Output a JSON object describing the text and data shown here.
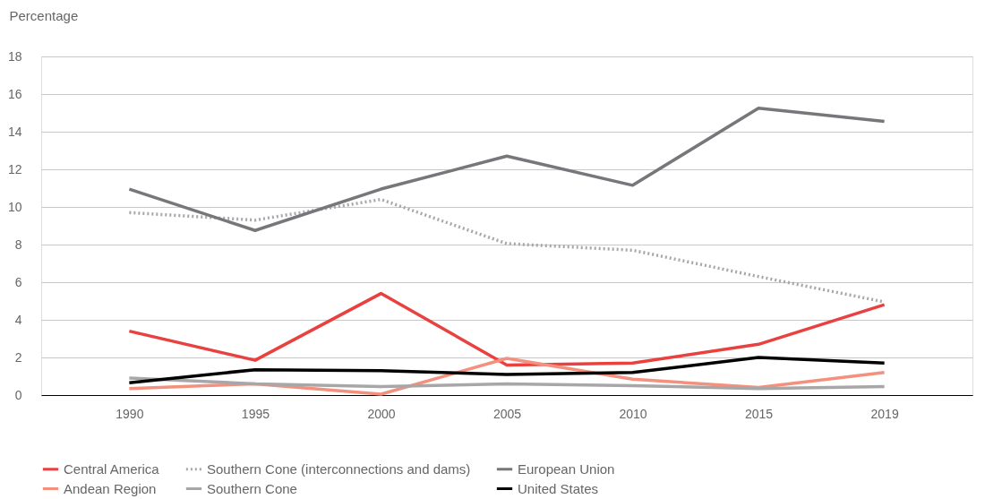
{
  "chart_data": {
    "type": "line",
    "ylabel": "Percentage",
    "categories": [
      "1990",
      "1995",
      "2000",
      "2005",
      "2010",
      "2015",
      "2019"
    ],
    "ylim": [
      0,
      18
    ],
    "yticks": [
      0,
      2,
      4,
      6,
      8,
      10,
      12,
      14,
      16,
      18
    ],
    "grid": "y",
    "legend": "bottom",
    "marker": "none",
    "series": [
      {
        "name": "Central America",
        "color": "#e8413f",
        "line_style": "solid",
        "values": [
          3.4,
          1.85,
          5.4,
          1.6,
          1.7,
          2.7,
          4.8
        ]
      },
      {
        "name": "Andean Region",
        "color": "#f4907e",
        "line_style": "solid",
        "values": [
          0.35,
          0.6,
          0.05,
          1.95,
          0.85,
          0.4,
          1.2
        ]
      },
      {
        "name": "Southern Cone (interconnections and dams)",
        "color": "#a7a7a9",
        "line_style": "dotted",
        "values": [
          9.7,
          9.3,
          10.4,
          8.05,
          7.7,
          6.3,
          4.95
        ]
      },
      {
        "name": "Southern Cone",
        "color": "#a7a7a9",
        "line_style": "solid",
        "values": [
          0.9,
          0.6,
          0.45,
          0.6,
          0.5,
          0.35,
          0.45
        ]
      },
      {
        "name": "European Union",
        "color": "#77777b",
        "line_style": "solid",
        "values": [
          10.95,
          8.75,
          10.95,
          12.7,
          11.15,
          15.25,
          14.55
        ]
      },
      {
        "name": "United States",
        "color": "#000000",
        "line_style": "solid",
        "values": [
          0.65,
          1.35,
          1.3,
          1.1,
          1.2,
          2.0,
          1.7
        ]
      }
    ]
  }
}
